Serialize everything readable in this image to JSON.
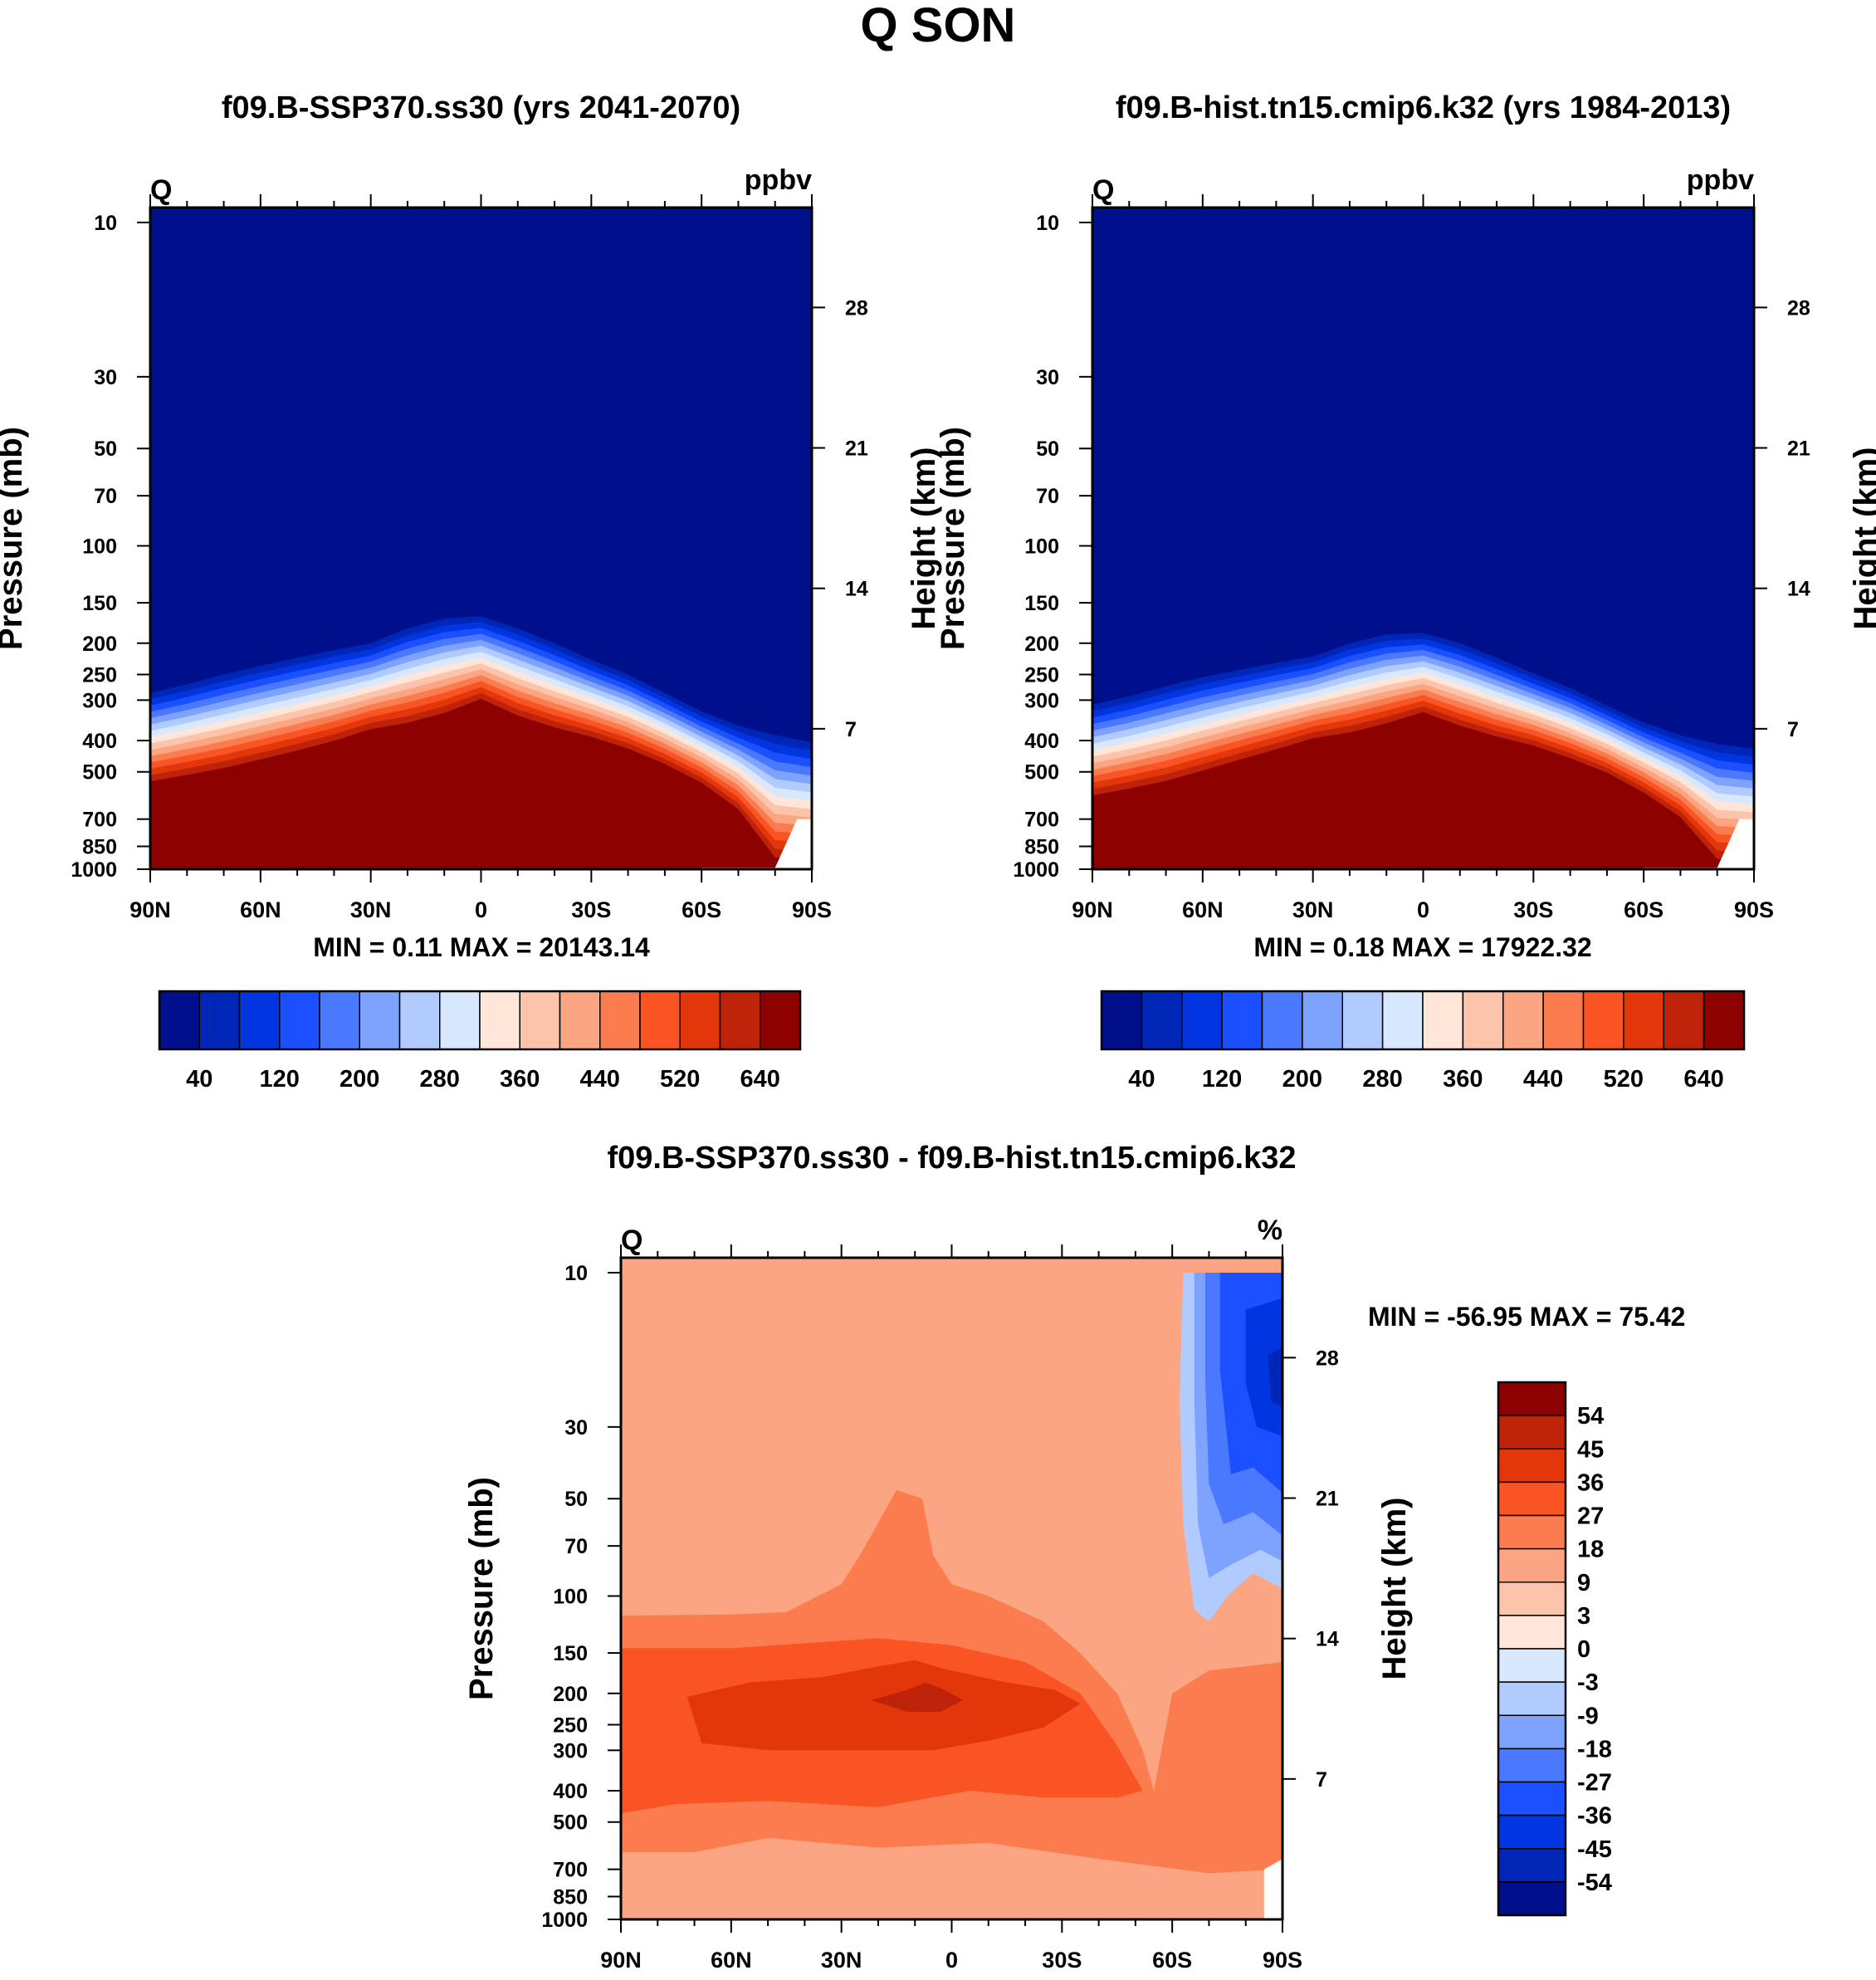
{
  "figure_title": "Q SON",
  "colors": {
    "abs_palette": [
      "#000f8c",
      "#0026b8",
      "#0035e0",
      "#1a50ff",
      "#4a78ff",
      "#7ea3ff",
      "#b1cbff",
      "#d8e8ff",
      "#ffe6d8",
      "#fcc4aa",
      "#fca582",
      "#fb7c4f",
      "#fa5425",
      "#e3360b",
      "#be2208",
      "#8c0000"
    ],
    "diff_palette": [
      "#000f8c",
      "#0026b8",
      "#0035e0",
      "#1a50ff",
      "#4a78ff",
      "#7ea3ff",
      "#b1cbff",
      "#d8e8ff",
      "#ffe6d8",
      "#fcc4aa",
      "#fca582",
      "#fb7c4f",
      "#fa5425",
      "#e3360b",
      "#be2208",
      "#8c0000"
    ]
  },
  "chart_data": [
    {
      "type": "heatmap",
      "title": "f09.B-SSP370.ss30 (yrs 2041-2070)",
      "corner_left": "Q",
      "corner_right": "ppbv",
      "ylabel": "Pressure (mb)",
      "ylabel_right": "Height (km)",
      "x_ticks": [
        "90N",
        "60N",
        "30N",
        "0",
        "30S",
        "60S",
        "90S"
      ],
      "x_values": [
        90,
        60,
        30,
        0,
        -30,
        -60,
        -90
      ],
      "y_ticks": [
        "10",
        "30",
        "50",
        "70",
        "100",
        "150",
        "200",
        "250",
        "300",
        "400",
        "500",
        "700",
        "850",
        "1000"
      ],
      "y_values": [
        10,
        30,
        50,
        70,
        100,
        150,
        200,
        250,
        300,
        400,
        500,
        700,
        850,
        1000
      ],
      "right_ticks": [
        "28",
        "21",
        "14",
        "7"
      ],
      "right_values": [
        28,
        21,
        14,
        7
      ],
      "stats": "MIN =   0.11   MAX = 20143.14",
      "levels": [
        20,
        40,
        80,
        120,
        160,
        200,
        240,
        280,
        320,
        360,
        400,
        440,
        480,
        520,
        560,
        600,
        640
      ],
      "colorbar_labels": [
        "40",
        "120",
        "200",
        "280",
        "360",
        "440",
        "520",
        "640"
      ],
      "profile_lat": [
        90,
        80,
        70,
        60,
        50,
        40,
        30,
        20,
        10,
        0,
        -10,
        -20,
        -30,
        -40,
        -50,
        -60,
        -70,
        -80,
        -90
      ],
      "upper_edge_p": [
        285,
        268,
        250,
        235,
        222,
        210,
        200,
        180,
        168,
        165,
        180,
        200,
        225,
        250,
        285,
        325,
        360,
        385,
        405
      ],
      "lower_edge_p": [
        560,
        535,
        510,
        480,
        450,
        420,
        385,
        370,
        345,
        310,
        350,
        380,
        405,
        440,
        490,
        560,
        680,
        980,
        990
      ]
    },
    {
      "type": "heatmap",
      "title": "f09.B-hist.tn15.cmip6.k32 (yrs 1984-2013)",
      "corner_left": "Q",
      "corner_right": "ppbv",
      "ylabel": "Pressure (mb)",
      "ylabel_right": "Height (km)",
      "x_ticks": [
        "90N",
        "60N",
        "30N",
        "0",
        "30S",
        "60S",
        "90S"
      ],
      "x_values": [
        90,
        60,
        30,
        0,
        -30,
        -60,
        -90
      ],
      "y_ticks": [
        "10",
        "30",
        "50",
        "70",
        "100",
        "150",
        "200",
        "250",
        "300",
        "400",
        "500",
        "700",
        "850",
        "1000"
      ],
      "y_values": [
        10,
        30,
        50,
        70,
        100,
        150,
        200,
        250,
        300,
        400,
        500,
        700,
        850,
        1000
      ],
      "right_ticks": [
        "28",
        "21",
        "14",
        "7"
      ],
      "right_values": [
        28,
        21,
        14,
        7
      ],
      "stats": "MIN =   0.18   MAX = 17922.32",
      "levels": [
        20,
        40,
        80,
        120,
        160,
        200,
        240,
        280,
        320,
        360,
        400,
        440,
        480,
        520,
        560,
        600,
        640
      ],
      "colorbar_labels": [
        "40",
        "120",
        "200",
        "280",
        "360",
        "440",
        "520",
        "640"
      ],
      "profile_lat": [
        90,
        80,
        70,
        60,
        50,
        40,
        30,
        20,
        10,
        0,
        -10,
        -20,
        -30,
        -40,
        -50,
        -60,
        -70,
        -80,
        -90
      ],
      "upper_edge_p": [
        310,
        292,
        272,
        255,
        242,
        230,
        220,
        200,
        188,
        186,
        200,
        222,
        248,
        275,
        312,
        352,
        385,
        410,
        425
      ],
      "lower_edge_p": [
        620,
        590,
        560,
        520,
        480,
        445,
        410,
        395,
        370,
        340,
        375,
        405,
        430,
        470,
        520,
        600,
        720,
        985,
        990
      ]
    },
    {
      "type": "heatmap",
      "title": "f09.B-SSP370.ss30 - f09.B-hist.tn15.cmip6.k32",
      "corner_left": "Q",
      "corner_right": "%",
      "ylabel": "Pressure (mb)",
      "ylabel_right": "Height (km)",
      "x_ticks": [
        "90N",
        "60N",
        "30N",
        "0",
        "30S",
        "60S",
        "90S"
      ],
      "x_values": [
        90,
        60,
        30,
        0,
        -30,
        -60,
        -90
      ],
      "y_ticks": [
        "10",
        "30",
        "50",
        "70",
        "100",
        "150",
        "200",
        "250",
        "300",
        "400",
        "500",
        "700",
        "850",
        "1000"
      ],
      "y_values": [
        10,
        30,
        50,
        70,
        100,
        150,
        200,
        250,
        300,
        400,
        500,
        700,
        850,
        1000
      ],
      "right_ticks": [
        "28",
        "21",
        "14",
        "7"
      ],
      "right_values": [
        28,
        21,
        14,
        7
      ],
      "stats": "MIN = -56.95   MAX =  75.42",
      "levels": [
        -54,
        -45,
        -36,
        -27,
        -18,
        -9,
        -3,
        0,
        3,
        9,
        18,
        27,
        36,
        45,
        54
      ],
      "colorbar_labels": [
        "54",
        "45",
        "36",
        "27",
        "18",
        "9",
        "3",
        "0",
        "-3",
        "-9",
        "-18",
        "-27",
        "-36",
        "-45",
        "-54"
      ],
      "background_value": 12,
      "regions": [
        {
          "value": 22,
          "points": [
            [
              90,
              115
            ],
            [
              60,
              114
            ],
            [
              45,
              112
            ],
            [
              30,
              92
            ],
            [
              25,
              75
            ],
            [
              15,
              47
            ],
            [
              8,
              50
            ],
            [
              5,
              75
            ],
            [
              0,
              92
            ],
            [
              -10,
              100
            ],
            [
              -25,
              120
            ],
            [
              -35,
              150
            ],
            [
              -45,
              200
            ],
            [
              -52,
              300
            ],
            [
              -55,
              400
            ],
            [
              -60,
              200
            ],
            [
              -70,
              170
            ],
            [
              -90,
              160
            ],
            [
              -90,
              700
            ],
            [
              -70,
              720
            ],
            [
              -40,
              650
            ],
            [
              -10,
              580
            ],
            [
              20,
              600
            ],
            [
              50,
              560
            ],
            [
              70,
              620
            ],
            [
              90,
              620
            ]
          ]
        },
        {
          "value": 30,
          "points": [
            [
              90,
              145
            ],
            [
              60,
              145
            ],
            [
              40,
              140
            ],
            [
              20,
              135
            ],
            [
              0,
              142
            ],
            [
              -20,
              160
            ],
            [
              -35,
              200
            ],
            [
              -45,
              290
            ],
            [
              -52,
              400
            ],
            [
              -45,
              420
            ],
            [
              -25,
              420
            ],
            [
              -5,
              400
            ],
            [
              20,
              450
            ],
            [
              50,
              430
            ],
            [
              75,
              440
            ],
            [
              90,
              470
            ]
          ]
        },
        {
          "value": 38,
          "points": [
            [
              72,
              205
            ],
            [
              55,
              185
            ],
            [
              35,
              178
            ],
            [
              20,
              165
            ],
            [
              10,
              158
            ],
            [
              2,
              168
            ],
            [
              -15,
              185
            ],
            [
              -28,
              195
            ],
            [
              -35,
              215
            ],
            [
              -25,
              255
            ],
            [
              -10,
              280
            ],
            [
              5,
              300
            ],
            [
              25,
              300
            ],
            [
              50,
              300
            ],
            [
              68,
              285
            ]
          ]
        },
        {
          "value": 46,
          "points": [
            [
              22,
              210
            ],
            [
              12,
              195
            ],
            [
              7,
              185
            ],
            [
              2,
              195
            ],
            [
              -3,
              210
            ],
            [
              3,
              228
            ],
            [
              12,
              228
            ]
          ]
        },
        {
          "value": 52,
          "points": [
            [
              8,
              201
            ],
            [
              7,
              196
            ],
            [
              5,
              195
            ],
            [
              4,
              201
            ],
            [
              5,
              207
            ],
            [
              7,
              206
            ]
          ]
        },
        {
          "value": -6,
          "points": [
            [
              -63,
              10
            ],
            [
              -70,
              10
            ],
            [
              -90,
              10
            ],
            [
              -90,
              95
            ],
            [
              -82,
              85
            ],
            [
              -75,
              100
            ],
            [
              -70,
              120
            ],
            [
              -66,
              110
            ],
            [
              -63,
              60
            ],
            [
              -62,
              25
            ]
          ]
        },
        {
          "value": -14,
          "points": [
            [
              -66,
              10
            ],
            [
              -90,
              10
            ],
            [
              -90,
              78
            ],
            [
              -84,
              72
            ],
            [
              -76,
              80
            ],
            [
              -70,
              88
            ],
            [
              -67,
              60
            ],
            [
              -66,
              25
            ]
          ]
        },
        {
          "value": -24,
          "points": [
            [
              -69,
              10
            ],
            [
              -90,
              10
            ],
            [
              -90,
              65
            ],
            [
              -82,
              55
            ],
            [
              -74,
              60
            ],
            [
              -70,
              45
            ],
            [
              -69,
              22
            ]
          ]
        },
        {
          "value": -33,
          "points": [
            [
              -73,
              10
            ],
            [
              -90,
              10
            ],
            [
              -90,
              48
            ],
            [
              -82,
              40
            ],
            [
              -76,
              42
            ],
            [
              -73,
              20
            ]
          ]
        },
        {
          "value": -42,
          "points": [
            [
              -80,
              13
            ],
            [
              -90,
              12
            ],
            [
              -90,
              32
            ],
            [
              -83,
              30
            ],
            [
              -80,
              22
            ]
          ]
        },
        {
          "value": -50,
          "points": [
            [
              -86,
              18
            ],
            [
              -90,
              17
            ],
            [
              -90,
              26
            ],
            [
              -87,
              25
            ]
          ]
        }
      ]
    }
  ]
}
